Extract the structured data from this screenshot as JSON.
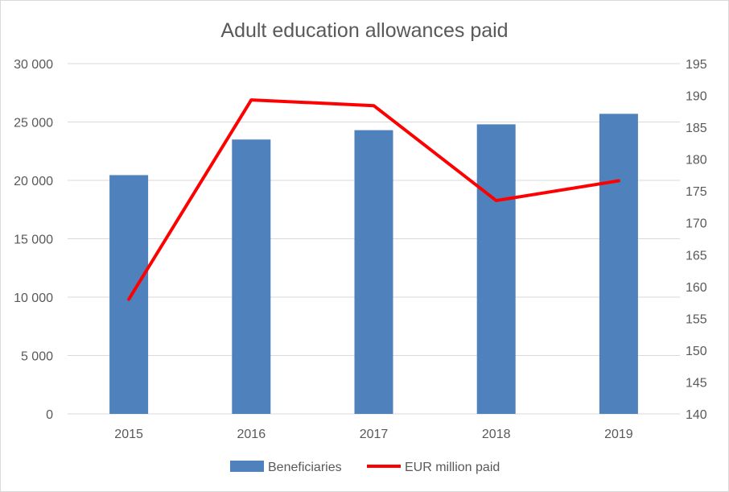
{
  "chart_data": {
    "type": "bar",
    "title": "Adult education allowances paid",
    "categories": [
      "2015",
      "2016",
      "2017",
      "2018",
      "2019"
    ],
    "series": [
      {
        "name": "Beneficiaries",
        "type": "bar",
        "axis": "left",
        "color": "#4f81bd",
        "values": [
          20450,
          23500,
          24300,
          24800,
          25700
        ]
      },
      {
        "name": "EUR million paid",
        "type": "line",
        "axis": "right",
        "color": "#ff0000",
        "values": [
          158.0,
          189.3,
          188.4,
          173.5,
          176.6
        ]
      }
    ],
    "y_left": {
      "min": 0,
      "max": 30000,
      "step": 5000,
      "tick_labels": [
        "0",
        "5 000",
        "10 000",
        "15 000",
        "20 000",
        "25 000",
        "30 000"
      ]
    },
    "y_right": {
      "min": 140,
      "max": 195,
      "step": 5,
      "tick_labels": [
        "140",
        "145",
        "150",
        "155",
        "160",
        "165",
        "170",
        "175",
        "180",
        "185",
        "190",
        "195"
      ]
    },
    "grid": true,
    "legend_position": "bottom"
  }
}
